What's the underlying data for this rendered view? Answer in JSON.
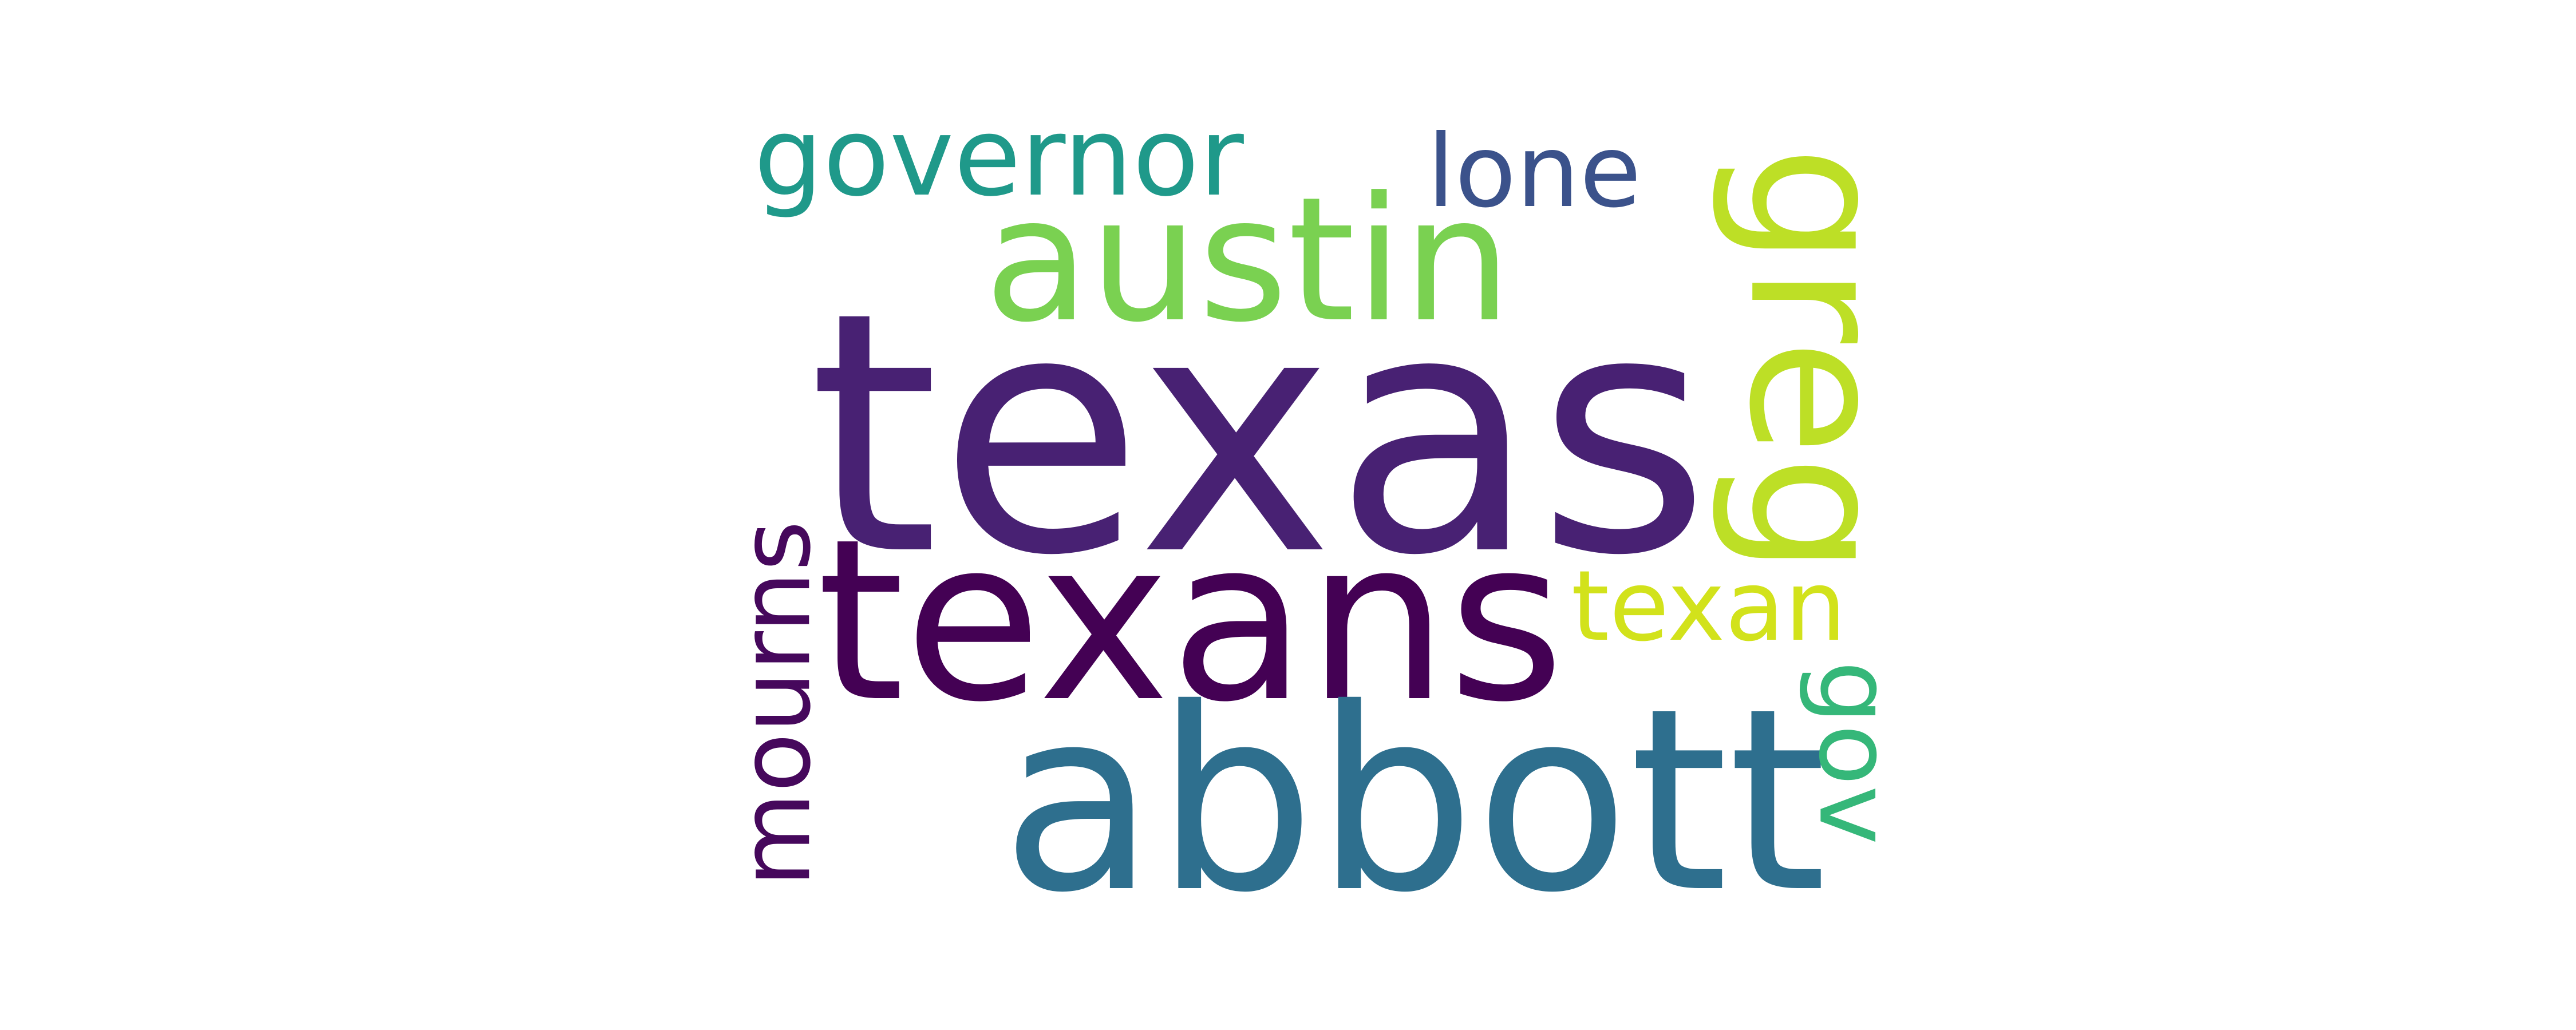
{
  "wordcloud": {
    "words": [
      {
        "id": "texas",
        "text": "texas",
        "color": "#482173",
        "weight": 1.0
      },
      {
        "id": "texans",
        "text": "texans",
        "color": "#440154",
        "weight": 0.72
      },
      {
        "id": "abbott",
        "text": "abbott",
        "color": "#2e6f8e",
        "weight": 0.78
      },
      {
        "id": "austin",
        "text": "austin",
        "color": "#7ad151",
        "weight": 0.55
      },
      {
        "id": "greg",
        "text": "greg",
        "color": "#bddf26",
        "weight": 0.62
      },
      {
        "id": "governor",
        "text": "governor",
        "color": "#1f998a",
        "weight": 0.38
      },
      {
        "id": "lone",
        "text": "lone",
        "color": "#3b528b",
        "weight": 0.3
      },
      {
        "id": "mourns",
        "text": "mourns",
        "color": "#46085c",
        "weight": 0.3
      },
      {
        "id": "texan",
        "text": "texan",
        "color": "#d2e21b",
        "weight": 0.29
      },
      {
        "id": "gov",
        "text": "gov",
        "color": "#35b779",
        "weight": 0.32
      }
    ]
  }
}
